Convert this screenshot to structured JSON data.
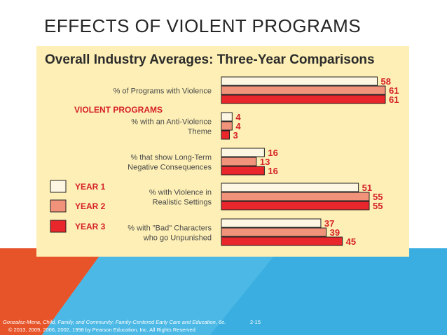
{
  "slide": {
    "title": "EFFECTS OF VIOLENT PROGRAMS",
    "footer_citation": "Gonzalez-Mena, Child, Family, and Community: Family-Centered Early Care and Education, 6e.",
    "footer_page": "2-15",
    "footer_copyright": "© 2013, 2009, 2006, 2002, 1998 by Pearson Education, Inc. All Rights Reserved"
  },
  "colors": {
    "panel_bg": "#fdefb5",
    "year1": "#fdf6e3",
    "year2": "#f0937a",
    "year3": "#e8262b",
    "accent_red": "#d62128",
    "value_red": "#d62128",
    "bg_orange": "#e8542a",
    "bg_blue": "#3aaee0"
  },
  "chart_data": {
    "type": "bar",
    "orientation": "horizontal",
    "title": "Overall Industry Averages: Three-Year Comparisons",
    "subtitle": "VIOLENT PROGRAMS",
    "categories": [
      [
        "% of Programs with Violence"
      ],
      [
        "% with an Anti-Violence",
        "Theme"
      ],
      [
        "% that show Long-Term",
        "Negative Consequences"
      ],
      [
        "% with Violence in",
        "Realistic Settings"
      ],
      [
        "% with \"Bad\" Characters",
        "who go Unpunished"
      ]
    ],
    "series": [
      {
        "name": "YEAR 1",
        "values": [
          58,
          4,
          16,
          51,
          37
        ]
      },
      {
        "name": "YEAR 2",
        "values": [
          61,
          4,
          13,
          55,
          39
        ]
      },
      {
        "name": "YEAR 3",
        "values": [
          61,
          3,
          16,
          55,
          45
        ]
      }
    ],
    "xlim": [
      0,
      61
    ],
    "legend_position": "left"
  }
}
